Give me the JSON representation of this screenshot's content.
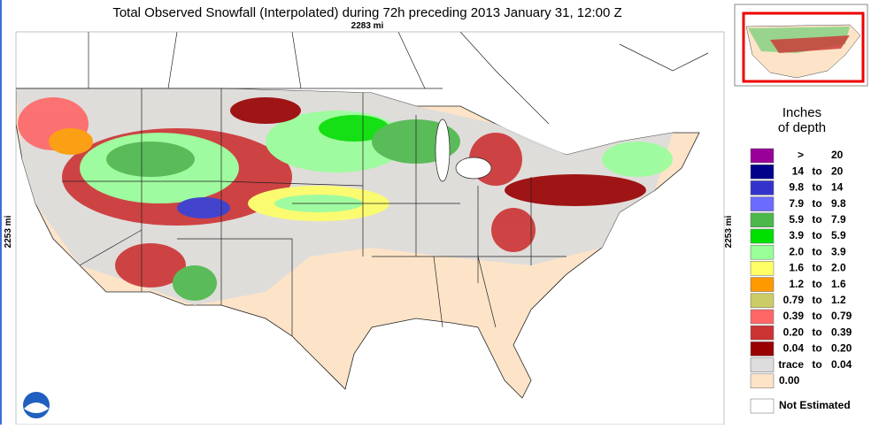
{
  "title": "Total Observed Snowfall (Interpolated) during 72h preceding 2013 January 31, 12:00 Z",
  "width_label": "2283 mi",
  "height_label_left": "2253 mi",
  "height_label_right": "2253 mi",
  "legend": {
    "title_line1": "Inches",
    "title_line2": "of depth",
    "items": [
      {
        "color": "#990099",
        "low": ">",
        "high": "20"
      },
      {
        "color": "#00008b",
        "low": "14",
        "sep": "to",
        "high": "20"
      },
      {
        "color": "#3333cc",
        "low": "9.8",
        "sep": "to",
        "high": "14"
      },
      {
        "color": "#6b6bff",
        "low": "7.9",
        "sep": "to",
        "high": "9.8"
      },
      {
        "color": "#4cb84c",
        "low": "5.9",
        "sep": "to",
        "high": "7.9"
      },
      {
        "color": "#00e000",
        "low": "3.9",
        "sep": "to",
        "high": "5.9"
      },
      {
        "color": "#99ff99",
        "low": "2.0",
        "sep": "to",
        "high": "3.9"
      },
      {
        "color": "#ffff66",
        "low": "1.6",
        "sep": "to",
        "high": "2.0"
      },
      {
        "color": "#ff9900",
        "low": "1.2",
        "sep": "to",
        "high": "1.6"
      },
      {
        "color": "#cccc66",
        "low": "0.79",
        "sep": "to",
        "high": "1.2"
      },
      {
        "color": "#ff6666",
        "low": "0.39",
        "sep": "to",
        "high": "0.79"
      },
      {
        "color": "#cc3333",
        "low": "0.20",
        "sep": "to",
        "high": "0.39"
      },
      {
        "color": "#990000",
        "low": "0.04",
        "sep": "to",
        "high": "0.20"
      },
      {
        "color": "#dddddd",
        "low": "trace",
        "sep": "to",
        "high": "0.04"
      },
      {
        "color": "#fde4c8",
        "low": "0.00"
      },
      {
        "color": "#ffffff",
        "low": "Not Estimated"
      }
    ]
  }
}
